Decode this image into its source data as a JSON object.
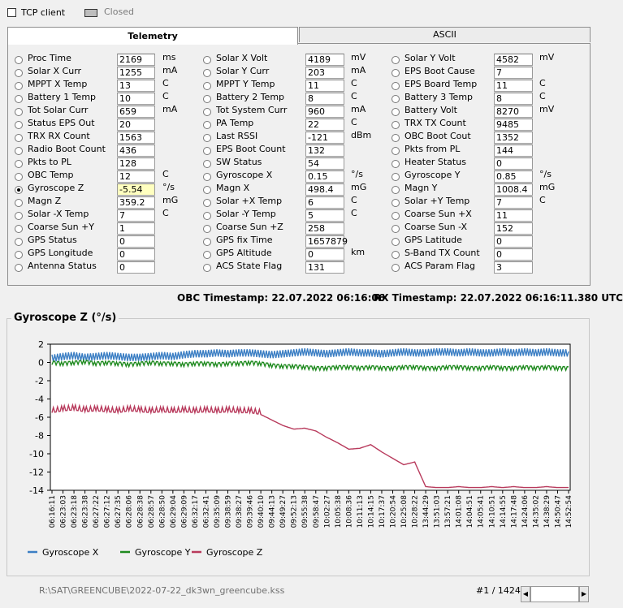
{
  "top": {
    "tcp_label": "TCP client",
    "status_label": "Closed"
  },
  "tabs": [
    {
      "label": "Telemetry",
      "active": true
    },
    {
      "label": "ASCII",
      "active": false
    }
  ],
  "telemetry": {
    "columns": [
      [
        {
          "label": "Proc Time",
          "value": "2169",
          "unit": "ms"
        },
        {
          "label": "Solar X Curr",
          "value": "1255",
          "unit": "mA"
        },
        {
          "label": "MPPT X Temp",
          "value": "13",
          "unit": "C"
        },
        {
          "label": "Battery 1 Temp",
          "value": "10",
          "unit": "C"
        },
        {
          "label": "Tot Solar Curr",
          "value": "659",
          "unit": "mA"
        },
        {
          "label": "Status EPS Out",
          "value": "20",
          "unit": ""
        },
        {
          "label": "TRX RX Count",
          "value": "1563",
          "unit": ""
        },
        {
          "label": "Radio Boot Count",
          "value": "436",
          "unit": ""
        },
        {
          "label": "Pkts to PL",
          "value": "128",
          "unit": ""
        },
        {
          "label": "OBC Temp",
          "value": "12",
          "unit": "C"
        },
        {
          "label": "Gyroscope Z",
          "value": "-5.54",
          "unit": "°/s",
          "selected": true,
          "highlight": true
        },
        {
          "label": "Magn Z",
          "value": "359.2",
          "unit": "mG"
        },
        {
          "label": "Solar -X Temp",
          "value": "7",
          "unit": "C"
        },
        {
          "label": "Coarse Sun +Y",
          "value": "1",
          "unit": ""
        },
        {
          "label": "GPS Status",
          "value": "0",
          "unit": ""
        },
        {
          "label": "GPS Longitude",
          "value": "0",
          "unit": ""
        },
        {
          "label": "Antenna Status",
          "value": "0",
          "unit": ""
        }
      ],
      [
        {
          "label": "Solar X Volt",
          "value": "4189",
          "unit": "mV"
        },
        {
          "label": "Solar Y Curr",
          "value": "203",
          "unit": "mA"
        },
        {
          "label": "MPPT Y Temp",
          "value": "11",
          "unit": "C"
        },
        {
          "label": "Battery 2 Temp",
          "value": "8",
          "unit": "C"
        },
        {
          "label": "Tot System Curr",
          "value": "960",
          "unit": "mA"
        },
        {
          "label": "PA Temp",
          "value": "22",
          "unit": "C"
        },
        {
          "label": "Last RSSI",
          "value": "-121",
          "unit": "dBm"
        },
        {
          "label": "EPS Boot Count",
          "value": "132",
          "unit": ""
        },
        {
          "label": "SW Status",
          "value": "54",
          "unit": ""
        },
        {
          "label": "Gyroscope X",
          "value": "0.15",
          "unit": "°/s"
        },
        {
          "label": "Magn X",
          "value": "498.4",
          "unit": "mG"
        },
        {
          "label": "Solar +X Temp",
          "value": "6",
          "unit": "C"
        },
        {
          "label": "Solar -Y Temp",
          "value": "5",
          "unit": "C"
        },
        {
          "label": "Coarse Sun +Z",
          "value": "258",
          "unit": ""
        },
        {
          "label": "GPS fix Time",
          "value": "1657879",
          "unit": ""
        },
        {
          "label": "GPS Altitude",
          "value": "0",
          "unit": "km"
        },
        {
          "label": "ACS State Flag",
          "value": "131",
          "unit": ""
        }
      ],
      [
        {
          "label": "Solar Y Volt",
          "value": "4582",
          "unit": "mV"
        },
        {
          "label": "EPS Boot Cause",
          "value": "7",
          "unit": ""
        },
        {
          "label": "EPS Board Temp",
          "value": "11",
          "unit": "C"
        },
        {
          "label": "Battery 3 Temp",
          "value": "8",
          "unit": "C"
        },
        {
          "label": "Battery Volt",
          "value": "8270",
          "unit": "mV"
        },
        {
          "label": "TRX TX Count",
          "value": "9485",
          "unit": ""
        },
        {
          "label": "OBC Boot Cout",
          "value": "1352",
          "unit": ""
        },
        {
          "label": "Pkts from PL",
          "value": "144",
          "unit": ""
        },
        {
          "label": "Heater Status",
          "value": "0",
          "unit": ""
        },
        {
          "label": "Gyroscope Y",
          "value": "0.85",
          "unit": "°/s"
        },
        {
          "label": "Magn Y",
          "value": "1008.4",
          "unit": "mG"
        },
        {
          "label": "Solar +Y Temp",
          "value": "7",
          "unit": "C"
        },
        {
          "label": "Coarse Sun +X",
          "value": "11",
          "unit": ""
        },
        {
          "label": "Coarse Sun -X",
          "value": "152",
          "unit": ""
        },
        {
          "label": "GPS Latitude",
          "value": "0",
          "unit": ""
        },
        {
          "label": "S-Band TX Count",
          "value": "0",
          "unit": ""
        },
        {
          "label": "ACS Param Flag",
          "value": "3",
          "unit": ""
        }
      ]
    ]
  },
  "timestamps": {
    "obc": "OBC Timestamp: 22.07.2022 06:16:06",
    "rx": "RX Timestamp: 22.07.2022 06:16:11.380 UTC"
  },
  "chart_data": {
    "type": "line",
    "title": "Gyroscope Z (°/s)",
    "ylim": [
      -14,
      2
    ],
    "yticks": [
      "2",
      "0",
      "-2",
      "-4",
      "-6",
      "-8",
      "-10",
      "-12",
      "-14"
    ],
    "grid": false,
    "legend_position": "bottom-left",
    "x": [
      "06:16:11",
      "06:23:03",
      "06:23:18",
      "06:23:38",
      "06:27:22",
      "06:27:12",
      "06:27:35",
      "06:28:06",
      "06:28:38",
      "06:28:57",
      "06:28:50",
      "06:29:04",
      "06:29:09",
      "06:32:17",
      "06:32:41",
      "09:35:09",
      "09:38:59",
      "09:38:27",
      "09:39:46",
      "09:40:10",
      "09:44:13",
      "09:49:27",
      "09:52:13",
      "09:55:38",
      "09:58:47",
      "10:02:27",
      "10:05:38",
      "10:08:36",
      "10:11:13",
      "10:14:15",
      "10:17:37",
      "10:20:54",
      "10:25:08",
      "10:28:22",
      "13:44:29",
      "13:51:03",
      "13:57:21",
      "14:01:08",
      "14:04:51",
      "14:05:41",
      "14:10:51",
      "14:14:55",
      "14:17:48",
      "14:24:06",
      "14:35:02",
      "14:38:29",
      "14:50:47",
      "14:52:54"
    ],
    "series": [
      {
        "name": "Gyroscope X",
        "color": "#3c7fc4",
        "values": [
          0.6,
          0.8,
          0.9,
          0.7,
          0.8,
          0.9,
          0.8,
          0.7,
          0.7,
          0.8,
          0.9,
          0.8,
          1.0,
          1.1,
          1.1,
          1.2,
          1.1,
          1.2,
          1.2,
          1.1,
          1.0,
          1.1,
          1.2,
          1.3,
          1.2,
          1.1,
          1.2,
          1.3,
          1.2,
          1.2,
          1.1,
          1.2,
          1.3,
          1.2,
          1.2,
          1.3,
          1.3,
          1.2,
          1.3,
          1.2,
          1.2,
          1.3,
          1.2,
          1.3,
          1.2,
          1.3,
          1.2,
          1.2
        ]
      },
      {
        "name": "Gyroscope Y",
        "color": "#1f8a1f",
        "values": [
          0.1,
          0.0,
          0.1,
          0.2,
          0.0,
          0.1,
          0.0,
          -0.1,
          0.0,
          0.1,
          0.0,
          0.0,
          -0.1,
          0.0,
          0.0,
          -0.1,
          0.0,
          0.0,
          0.1,
          0.0,
          -0.2,
          -0.3,
          -0.3,
          -0.4,
          -0.5,
          -0.5,
          -0.4,
          -0.4,
          -0.5,
          -0.4,
          -0.5,
          -0.5,
          -0.4,
          -0.4,
          -0.5,
          -0.5,
          -0.4,
          -0.4,
          -0.5,
          -0.5,
          -0.4,
          -0.5,
          -0.5,
          -0.4,
          -0.5,
          -0.4,
          -0.5,
          -0.5
        ]
      },
      {
        "name": "Gyroscope Z",
        "color": "#b83a5c",
        "values": [
          -5.5,
          -5.3,
          -5.2,
          -5.4,
          -5.3,
          -5.4,
          -5.5,
          -5.3,
          -5.4,
          -5.5,
          -5.4,
          -5.5,
          -5.4,
          -5.5,
          -5.4,
          -5.5,
          -5.4,
          -5.5,
          -5.5,
          -5.7,
          -6.3,
          -6.9,
          -7.3,
          -7.2,
          -7.5,
          -8.2,
          -8.8,
          -9.5,
          -9.4,
          -9.0,
          -9.8,
          -10.5,
          -11.2,
          -10.9,
          -13.6,
          -13.7,
          -13.7,
          -13.6,
          -13.7,
          -13.7,
          -13.6,
          -13.7,
          -13.6,
          -13.7,
          -13.7,
          -13.6,
          -13.7,
          -13.7
        ]
      }
    ]
  },
  "status": {
    "path": "R:\\SAT\\GREENCUBE\\2022-07-22_dk3wn_greencube.kss",
    "counter": "#1 / 1424"
  }
}
